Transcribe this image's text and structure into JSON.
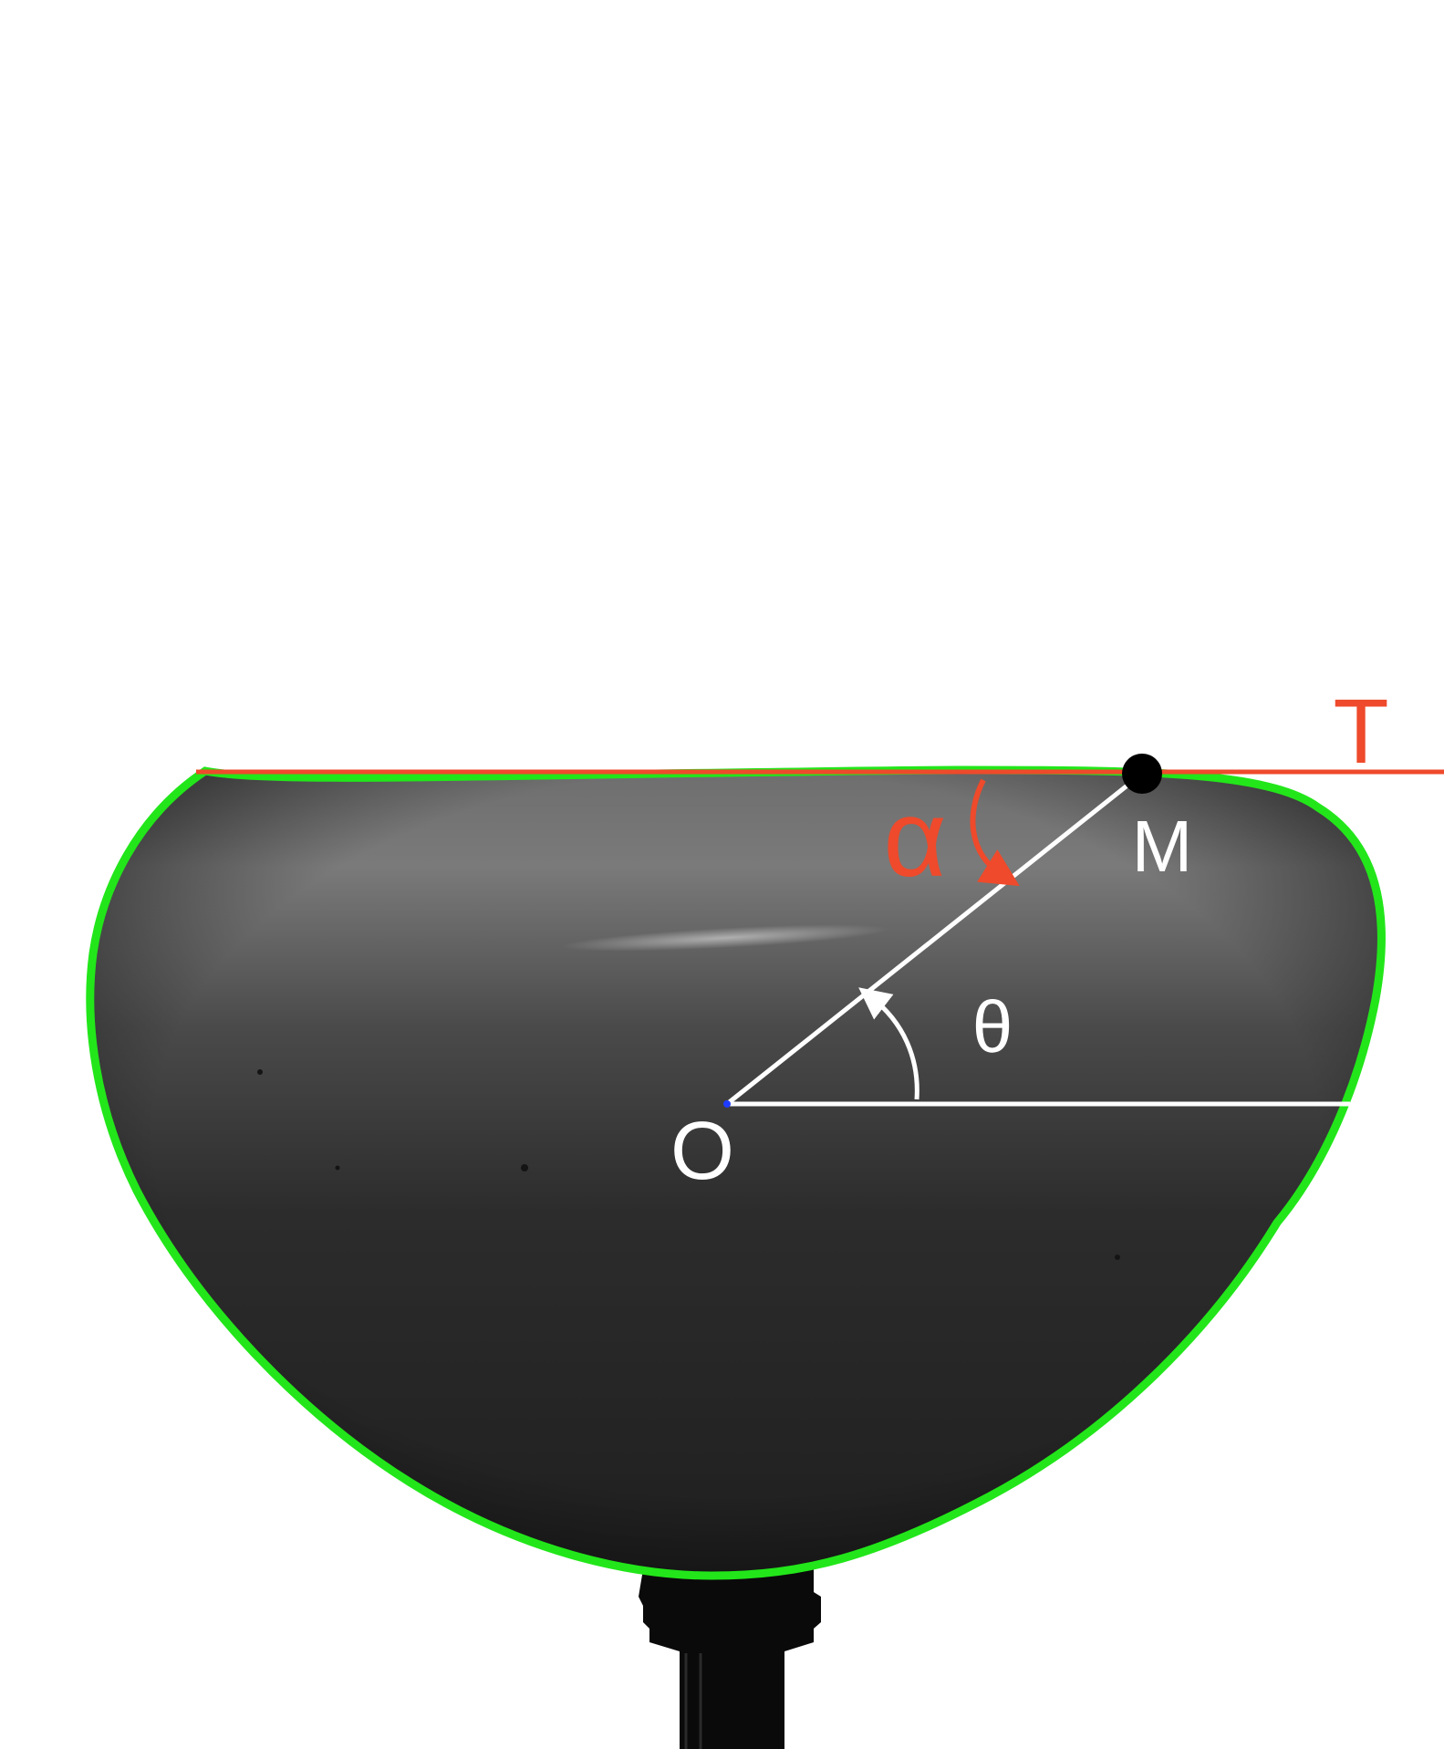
{
  "labels": {
    "tangent": "T",
    "point_m": "M",
    "origin": "O",
    "alpha": "α",
    "theta": "θ"
  },
  "colors": {
    "background": "#ffffff",
    "drop_outline": "#22e61a",
    "tangent_line": "#ee4a2b",
    "construction_lines": "#ffffff",
    "point_marker": "#000000",
    "drop_dark": "#222222",
    "drop_light": "#7a7a7a",
    "needle": "#0a0a0a"
  }
}
